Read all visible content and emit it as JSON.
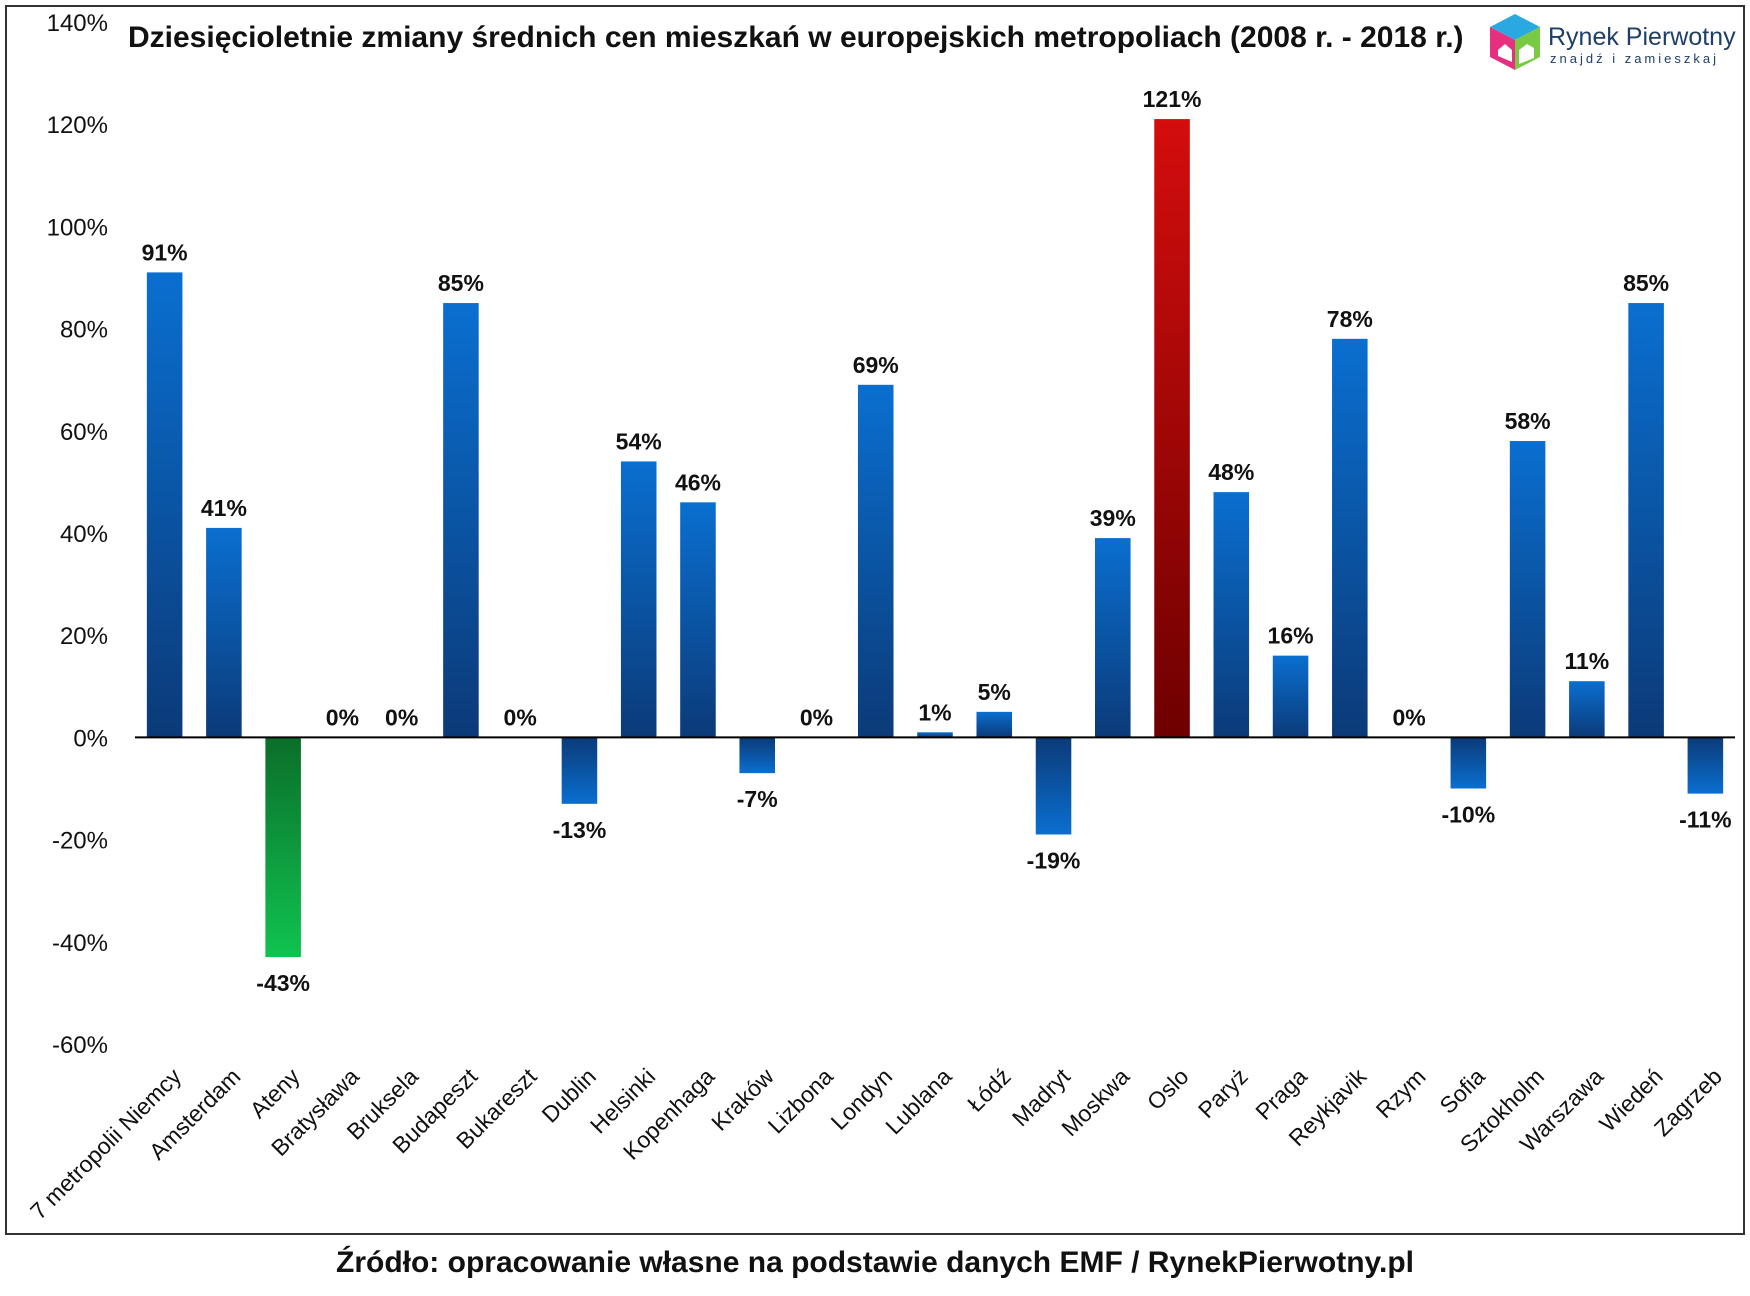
{
  "source_note": "Źródło: opracowanie własne na podstawie danych EMF / RynekPierwotny.pl",
  "logo": {
    "name": "Rynek Pierwotny",
    "tagline": "znajdź i zamieszkaj"
  },
  "colors": {
    "bar_blue_top": "#0a6fd0",
    "bar_blue_bottom": "#0b3a78",
    "bar_red_top": "#d40d0d",
    "bar_red_bottom": "#6e0000",
    "bar_green_top": "#0b6e2a",
    "bar_green_bottom": "#0fc350",
    "axis": "#000000",
    "text": "#111111"
  },
  "chart_data": {
    "type": "bar",
    "title": "Dziesięcioletnie zmiany średnich cen mieszkań w europejskich metropoliach (2008 r. - 2018 r.)",
    "xlabel": "",
    "ylabel": "",
    "ylim": [
      -60,
      140
    ],
    "yticks": [
      -60,
      -40,
      -20,
      0,
      20,
      40,
      60,
      80,
      100,
      120,
      140
    ],
    "ytick_labels": [
      "-60%",
      "-40%",
      "-20%",
      "0%",
      "20%",
      "40%",
      "60%",
      "80%",
      "100%",
      "120%",
      "140%"
    ],
    "grid": false,
    "legend": null,
    "categories": [
      "7 metropolii Niemcy",
      "Amsterdam",
      "Ateny",
      "Bratysława",
      "Bruksela",
      "Budapeszt",
      "Bukareszt",
      "Dublin",
      "Helsinki",
      "Kopenhaga",
      "Kraków",
      "Lizbona",
      "Londyn",
      "Lublana",
      "Łódź",
      "Madryt",
      "Moskwa",
      "Oslo",
      "Paryż",
      "Praga",
      "Reykjavik",
      "Rzym",
      "Sofia",
      "Sztokholm",
      "Warszawa",
      "Wiedeń",
      "Zagrzeb"
    ],
    "values": [
      91,
      41,
      -43,
      0,
      0,
      85,
      0,
      -13,
      54,
      46,
      -7,
      0,
      69,
      1,
      5,
      -19,
      39,
      121,
      48,
      16,
      78,
      0,
      -10,
      58,
      11,
      85,
      -11
    ],
    "value_labels": [
      "91%",
      "41%",
      "-43%",
      "0%",
      "0%",
      "85%",
      "0%",
      "-13%",
      "54%",
      "46%",
      "-7%",
      "0%",
      "69%",
      "1%",
      "5%",
      "-19%",
      "39%",
      "121%",
      "48%",
      "16%",
      "78%",
      "0%",
      "-10%",
      "58%",
      "11%",
      "85%",
      "-11%"
    ],
    "bar_colors": [
      "blue",
      "blue",
      "green",
      "blue",
      "blue",
      "blue",
      "blue",
      "blue",
      "blue",
      "blue",
      "blue",
      "blue",
      "blue",
      "blue",
      "blue",
      "blue",
      "blue",
      "red",
      "blue",
      "blue",
      "blue",
      "blue",
      "blue",
      "blue",
      "blue",
      "blue",
      "blue"
    ]
  }
}
